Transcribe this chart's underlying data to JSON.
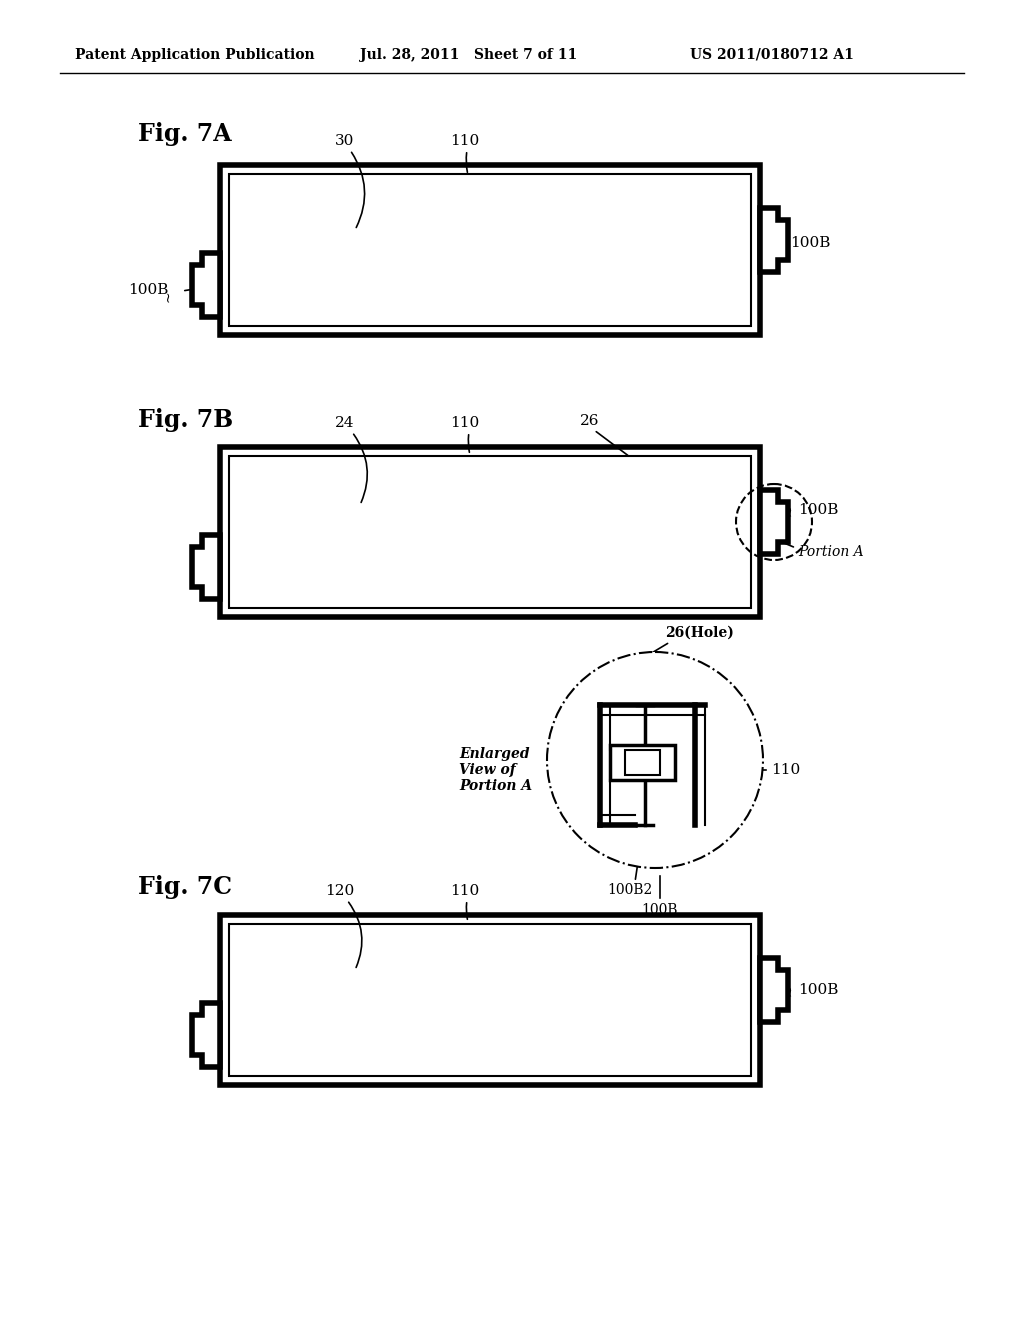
{
  "bg_color": "#ffffff",
  "header_left": "Patent Application Publication",
  "header_mid": "Jul. 28, 2011   Sheet 7 of 11",
  "header_right": "US 2011/0180712 A1",
  "fig7A_label": "Fig. 7A",
  "fig7B_label": "Fig. 7B",
  "fig7C_label": "Fig. 7C",
  "label_30": "30",
  "label_110": "110",
  "label_100B": "100B",
  "label_24": "24",
  "label_26": "26",
  "label_120": "120",
  "label_26hole": "26(Hole)",
  "label_100B2": "100B2",
  "label_enlarged": "Enlarged\nView of\nPortion A",
  "label_portionA": "Portion A"
}
